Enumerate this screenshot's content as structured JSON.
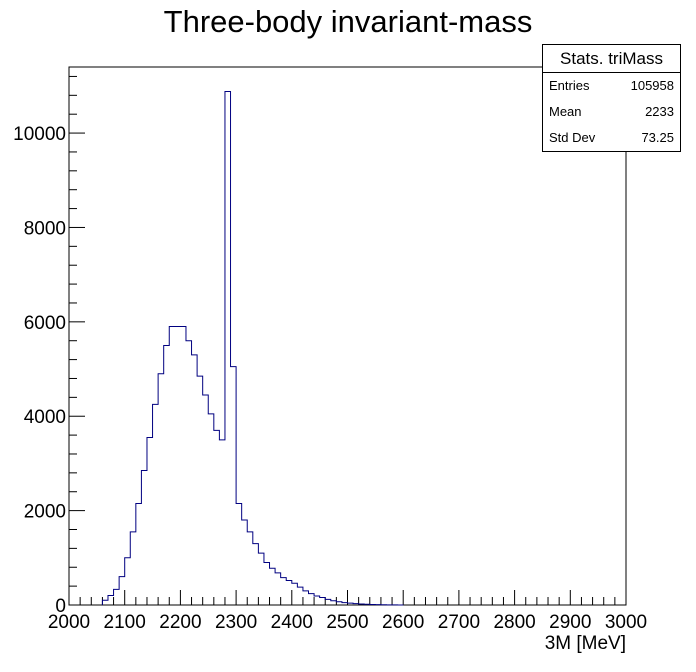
{
  "chart_data": {
    "type": "bar",
    "title": "Three-body invariant-mass",
    "xlabel": "3M [MeV]",
    "ylabel": "",
    "xlim": [
      2000,
      3000
    ],
    "ylim": [
      0,
      11400
    ],
    "bin_width": 10,
    "x_ticks": [
      "2000",
      "2100",
      "2200",
      "2300",
      "2400",
      "2500",
      "2600",
      "2700",
      "2800",
      "2900",
      "3000"
    ],
    "y_ticks": [
      "0",
      "2000",
      "4000",
      "6000",
      "8000",
      "10000"
    ],
    "bins_low_edge": [
      2060,
      2070,
      2080,
      2090,
      2100,
      2110,
      2120,
      2130,
      2140,
      2150,
      2160,
      2170,
      2180,
      2190,
      2200,
      2210,
      2220,
      2230,
      2240,
      2250,
      2260,
      2270,
      2280,
      2290,
      2300,
      2310,
      2320,
      2330,
      2340,
      2350,
      2360,
      2370,
      2380,
      2390,
      2400,
      2410,
      2420,
      2430,
      2440,
      2450,
      2460,
      2470,
      2480,
      2490,
      2500,
      2510,
      2520,
      2530,
      2540,
      2550,
      2560,
      2570,
      2580,
      2590
    ],
    "values": [
      100,
      200,
      330,
      600,
      1000,
      1550,
      2150,
      2850,
      3550,
      4250,
      4900,
      5500,
      5900,
      5900,
      5900,
      5600,
      5300,
      4850,
      4450,
      4050,
      3700,
      3500,
      10880,
      5050,
      2150,
      1800,
      1550,
      1300,
      1100,
      900,
      780,
      680,
      580,
      520,
      460,
      380,
      300,
      240,
      190,
      160,
      120,
      90,
      70,
      50,
      40,
      30,
      20,
      15,
      10,
      8,
      5,
      3,
      2,
      1
    ],
    "grid": false,
    "legend": "none",
    "line_color": "#000080",
    "stats": {
      "title": "Stats. triMass",
      "entries_label": "Entries",
      "entries_value": "105958",
      "mean_label": "Mean",
      "mean_value": "2233",
      "stddev_label": "Std Dev",
      "stddev_value": "73.25"
    }
  }
}
